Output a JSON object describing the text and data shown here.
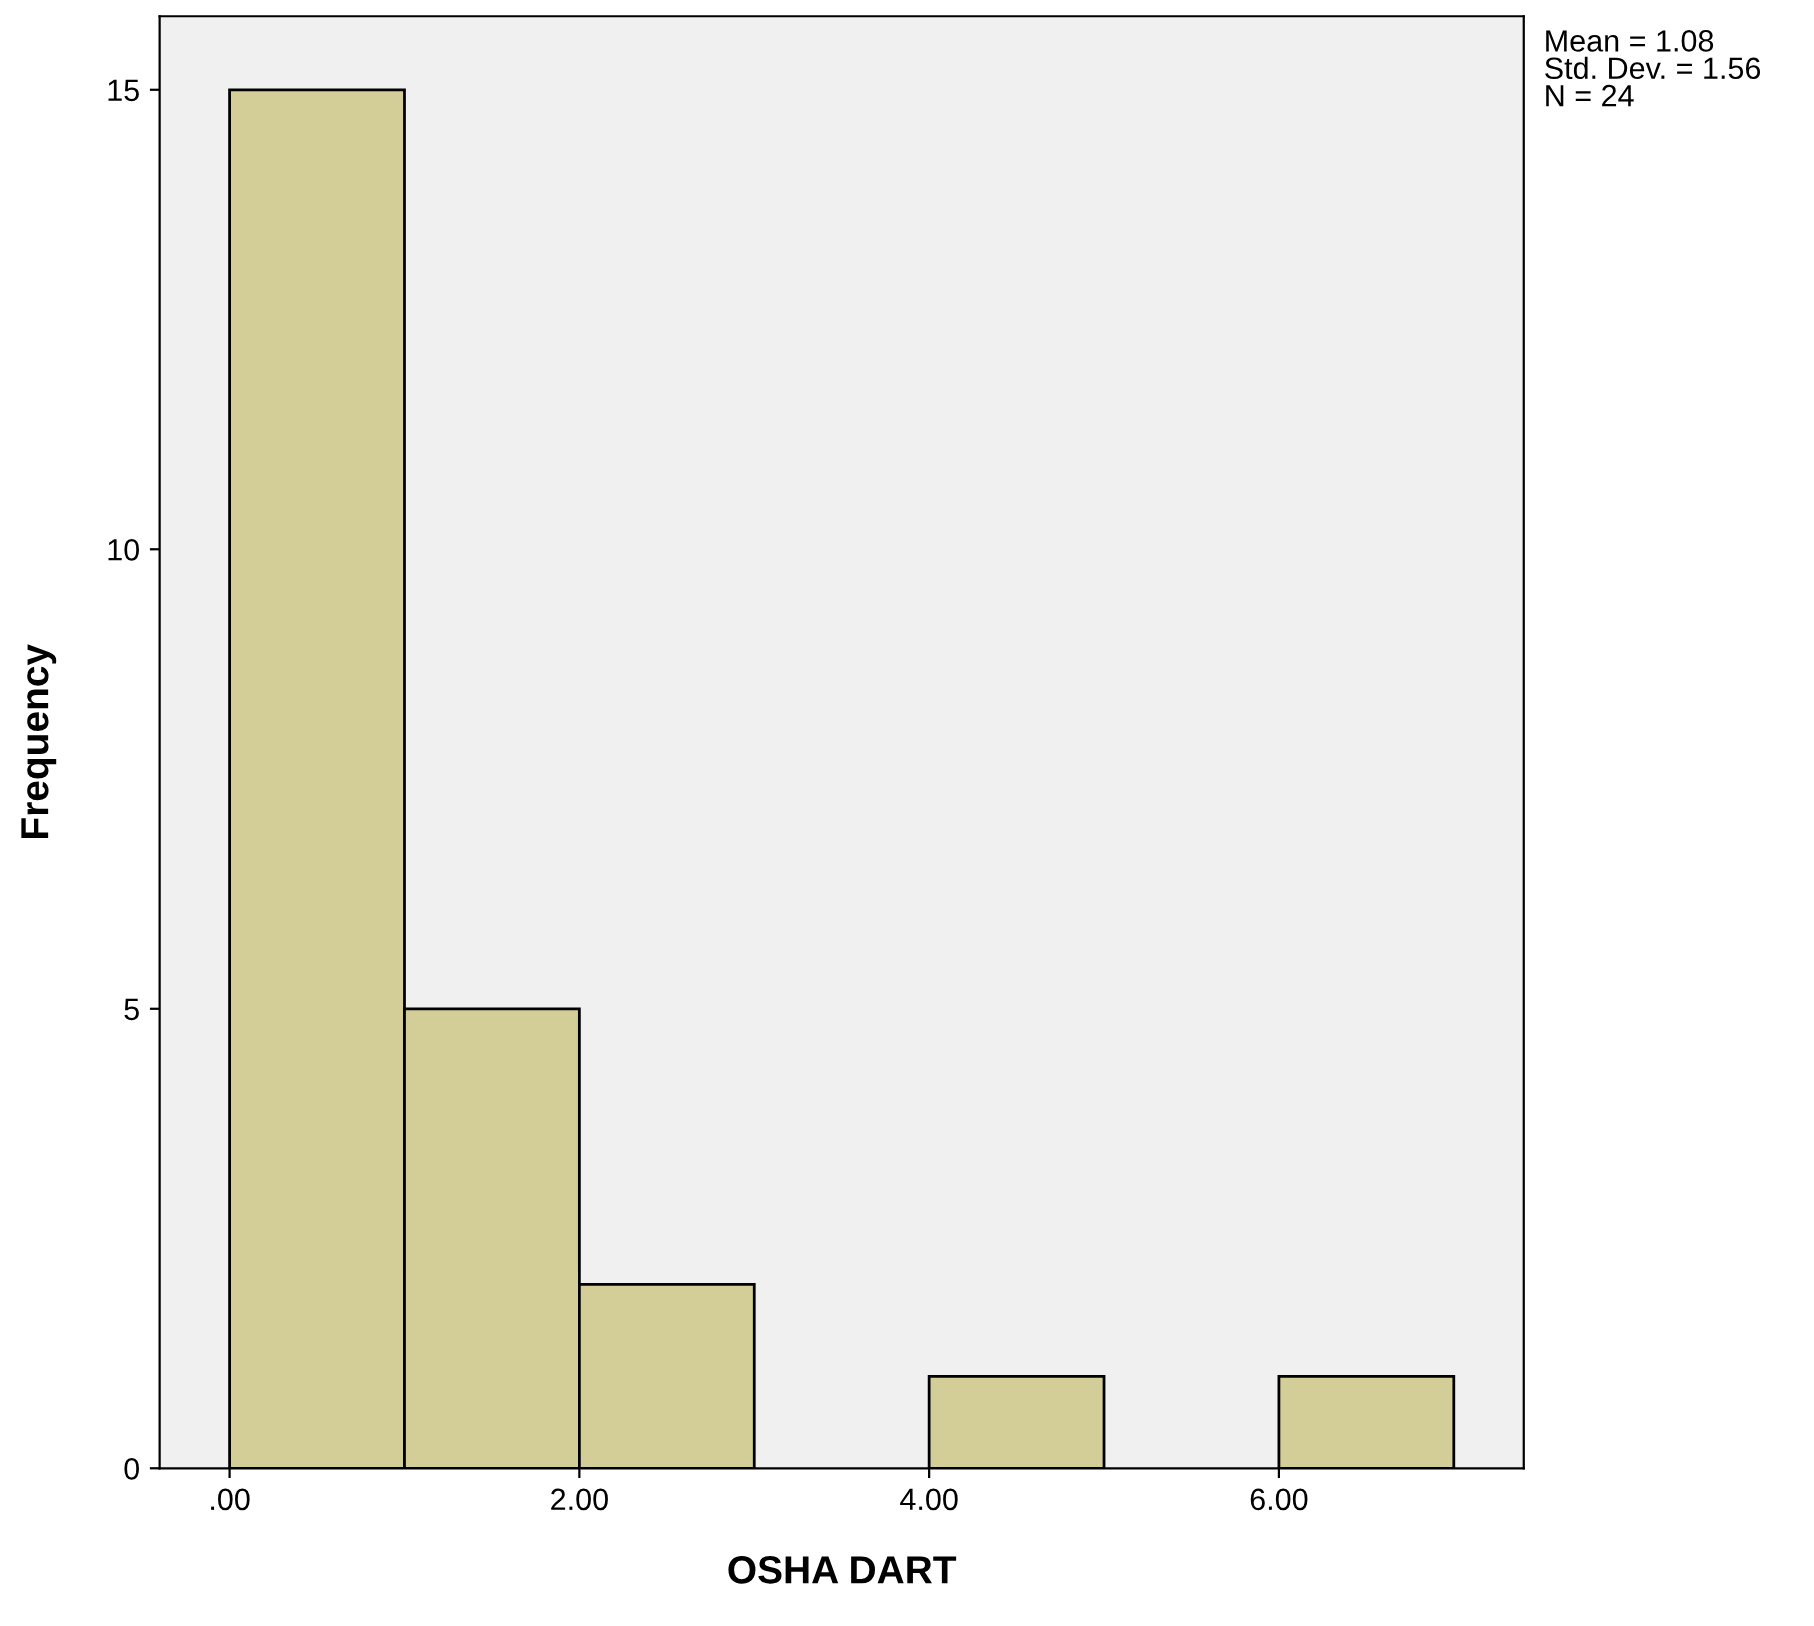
{
  "chart_data": {
    "type": "histogram",
    "xlabel": "OSHA DART",
    "ylabel": "Frequency",
    "bins": [
      0,
      1,
      2,
      3,
      4,
      5,
      6,
      7
    ],
    "values": [
      15,
      5,
      2,
      0,
      1,
      0,
      1
    ],
    "color": "#d3ce97",
    "xlim": [
      -0.4,
      7.4
    ],
    "ylim": [
      0,
      15.8
    ],
    "xticks": [
      {
        "value": 0,
        "label": ".00"
      },
      {
        "value": 2,
        "label": "2.00"
      },
      {
        "value": 4,
        "label": "4.00"
      },
      {
        "value": 6,
        "label": "6.00"
      }
    ],
    "yticks": [
      0,
      5,
      10,
      15
    ],
    "grid": false,
    "legend": false,
    "annotations": [
      "Mean = 1.08\nStd. Dev. = 1.56\nN = 24"
    ]
  }
}
